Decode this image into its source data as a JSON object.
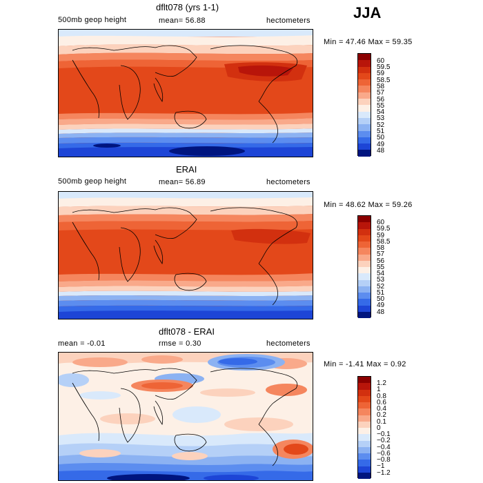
{
  "season_label": "JJA",
  "panels": [
    {
      "title": "dflt078 (yrs 1-1)",
      "left_label": "500mb geop height",
      "center_label": "mean=  56.88",
      "right_label": "hectometers",
      "range_label": "Min =  47.46 Max =  59.35",
      "levels": [
        "60",
        "59.5",
        "59",
        "58.5",
        "58",
        "57",
        "56",
        "55",
        "54",
        "53",
        "52",
        "51",
        "50",
        "49",
        "48"
      ],
      "colors": [
        "#8b0000",
        "#b8150a",
        "#d2300f",
        "#e3481a",
        "#ee6436",
        "#f5865e",
        "#f9a98a",
        "#fcd2bd",
        "#fdf0e6",
        "#d9e9fb",
        "#b5d0f7",
        "#8cb2f2",
        "#5c8def",
        "#356ae8",
        "#1d45d6",
        "#00157f"
      ]
    },
    {
      "title": "ERAI",
      "left_label": "500mb geop height",
      "center_label": "mean=  56.89",
      "right_label": "hectometers",
      "range_label": "Min =  48.62 Max =  59.26",
      "levels": [
        "60",
        "59.5",
        "59",
        "58.5",
        "58",
        "57",
        "56",
        "55",
        "54",
        "53",
        "52",
        "51",
        "50",
        "49",
        "48"
      ],
      "colors": [
        "#8b0000",
        "#b8150a",
        "#d2300f",
        "#e3481a",
        "#ee6436",
        "#f5865e",
        "#f9a98a",
        "#fcd2bd",
        "#fdf0e6",
        "#d9e9fb",
        "#b5d0f7",
        "#8cb2f2",
        "#5c8def",
        "#356ae8",
        "#1d45d6",
        "#00157f"
      ]
    },
    {
      "title": "dflt078 - ERAI",
      "left_label": "mean =  -0.01",
      "center_label": "rmse =    0.30",
      "right_label": "hectometers",
      "range_label": "Min =  -1.41 Max =   0.92",
      "levels": [
        "1.2",
        "1",
        "0.8",
        "0.6",
        "0.4",
        "0.2",
        "0.1",
        "0",
        "−0.1",
        "−0.2",
        "−0.4",
        "−0.6",
        "−0.8",
        "−1",
        "−1.2"
      ],
      "colors": [
        "#8b0000",
        "#b8150a",
        "#d2300f",
        "#e3481a",
        "#ee6436",
        "#f5865e",
        "#f9a98a",
        "#fcd2bd",
        "#fdf0e6",
        "#d9e9fb",
        "#b5d0f7",
        "#8cb2f2",
        "#5c8def",
        "#356ae8",
        "#1d45d6",
        "#00157f"
      ]
    }
  ]
}
